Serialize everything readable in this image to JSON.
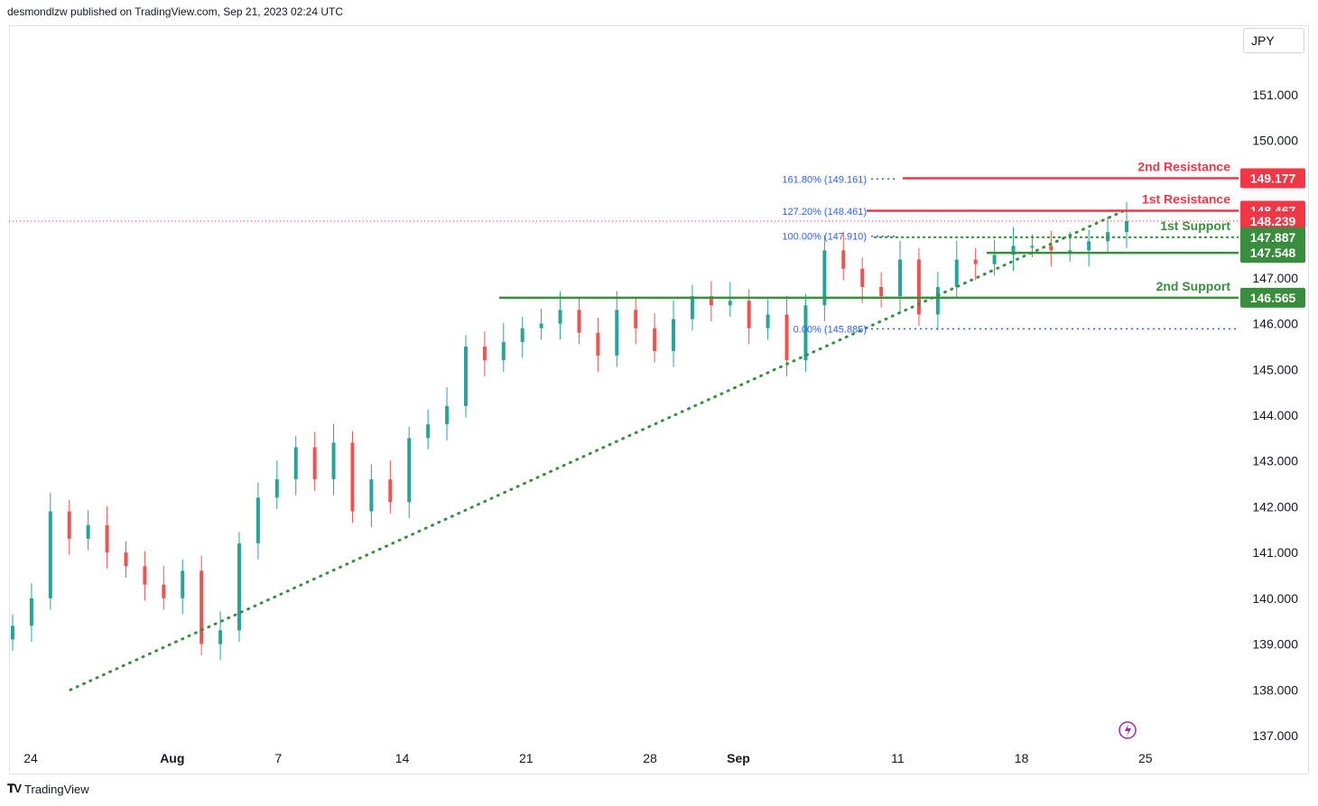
{
  "header": {
    "published": "desmondlzw published on TradingView.com, Sep 21, 2023 02:24 UTC"
  },
  "currency": "JPY",
  "footer": {
    "brand": "TradingView"
  },
  "colors": {
    "up": "#26a69a",
    "down": "#ef5350",
    "resistance": "#f23645",
    "support": "#388e3c",
    "fib": "#2962ff"
  },
  "chart_data": {
    "type": "candlestick",
    "ylim": [
      136.8,
      151.6
    ],
    "y_ticks": [
      "151.000",
      "150.000",
      "147.000",
      "146.000",
      "145.000",
      "144.000",
      "143.000",
      "142.000",
      "141.000",
      "140.000",
      "139.000",
      "138.000",
      "137.000"
    ],
    "x_ticks": [
      {
        "label": "24",
        "day": 0
      },
      {
        "label": "Aug",
        "day": 8
      },
      {
        "label": "7",
        "day": 14
      },
      {
        "label": "14",
        "day": 21
      },
      {
        "label": "21",
        "day": 28
      },
      {
        "label": "28",
        "day": 35
      },
      {
        "label": "Sep",
        "day": 40
      },
      {
        "label": "11",
        "day": 49
      },
      {
        "label": "18",
        "day": 56
      },
      {
        "label": "25",
        "day": 63
      }
    ],
    "closes": [
      139.4,
      140.0,
      141.9,
      141.3,
      141.6,
      141.0,
      140.7,
      140.3,
      140.0,
      140.6,
      139.0,
      139.3,
      141.2,
      142.2,
      142.6,
      143.3,
      142.6,
      143.4,
      141.9,
      142.6,
      142.1,
      143.5,
      143.8,
      144.2,
      145.5,
      145.2,
      145.6,
      145.9,
      146.0,
      146.3,
      145.8,
      145.3,
      146.3,
      145.9,
      145.4,
      146.1,
      146.6,
      146.4,
      146.5,
      145.9,
      146.2,
      145.2,
      146.4,
      147.6,
      147.2,
      146.8,
      146.6,
      147.4,
      146.2,
      146.8,
      147.4,
      147.3,
      147.5,
      147.7,
      147.7,
      147.6,
      147.6,
      147.8,
      148.0,
      148.24
    ],
    "levels": [
      {
        "label": "2nd Resistance",
        "value": "149.177",
        "kind": "resistance"
      },
      {
        "label": "1st Resistance",
        "value": "148.467",
        "kind": "resistance"
      },
      {
        "label": "1st Support",
        "value": "147.887",
        "kind": "support"
      },
      {
        "label": "2nd Support",
        "value": "146.565",
        "kind": "support"
      }
    ],
    "current_price": "148.239",
    "level_147548": "147.548",
    "fib_levels": [
      {
        "label": "161.80% (149.161)",
        "value": 149.161
      },
      {
        "label": "127.20% (148.461)",
        "value": 148.461
      },
      {
        "label": "100.00% (147.910)",
        "value": 147.91
      },
      {
        "label": "0.00% (145.885)",
        "value": 145.885
      }
    ],
    "trendline": {
      "from": {
        "day": 2.5,
        "price": 138.0
      },
      "to": {
        "day": 61.8,
        "price": 148.45
      }
    }
  }
}
